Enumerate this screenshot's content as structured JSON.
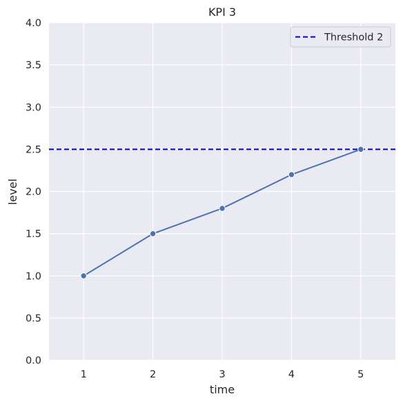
{
  "chart_data": {
    "type": "line",
    "title": "KPI 3",
    "xlabel": "time",
    "ylabel": "level",
    "x": [
      1,
      2,
      3,
      4,
      5
    ],
    "series": [
      {
        "values": [
          1.0,
          1.5,
          1.8,
          2.2,
          2.5
        ],
        "color": "#4c72b0",
        "marker": "circle"
      }
    ],
    "reference_lines": [
      {
        "name": "Threshold 2",
        "y": 2.5,
        "color": "#0000cc",
        "style": "dashed"
      }
    ],
    "xlim": [
      0.5,
      5.5
    ],
    "ylim": [
      0.0,
      4.0
    ],
    "xticks": [
      "1",
      "2",
      "3",
      "4",
      "5"
    ],
    "yticks": [
      "0.0",
      "0.5",
      "1.0",
      "1.5",
      "2.0",
      "2.5",
      "3.0",
      "3.5",
      "4.0"
    ],
    "grid": true,
    "legend": {
      "placement": "top-right",
      "entries": [
        "Threshold 2"
      ]
    },
    "background_color": "#eaeaf2",
    "grid_color": "#ffffff"
  }
}
